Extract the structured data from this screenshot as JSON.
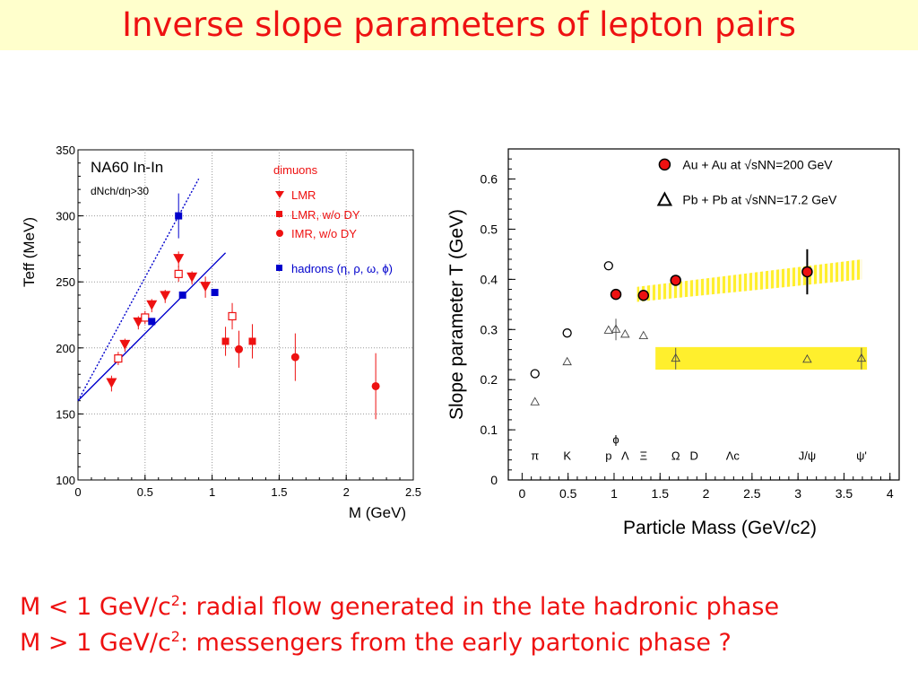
{
  "slide": {
    "title": "Inverse slope parameters of lepton pairs",
    "caption_1": {
      "prefix": "M < 1 GeV/c",
      "sup": "2",
      "suffix": ": radial flow generated in the late hadronic phase"
    },
    "caption_2": {
      "prefix": "M > 1 GeV/c",
      "sup": "2",
      "suffix": ": messengers from the early partonic phase ?"
    }
  },
  "colors": {
    "title_bg": "#ffffcc",
    "red": "#ee1111",
    "blue": "#0000cc",
    "yellow_band": "#ffee22"
  },
  "chart_data": [
    {
      "type": "scatter",
      "title": "NA60 In-In",
      "subtitle": "dNch/dη>30",
      "xlabel": "M (GeV)",
      "ylabel": "Teff (MeV)",
      "xlim": [
        0,
        2.5
      ],
      "ylim": [
        100,
        350
      ],
      "xticks": [
        0,
        0.5,
        1,
        1.5,
        2,
        2.5
      ],
      "xtick_labels": [
        "0",
        "0.5",
        "1",
        "1.5",
        "2",
        "2.5"
      ],
      "yticks": [
        100,
        150,
        200,
        250,
        300,
        350
      ],
      "ytick_labels": [
        "100",
        "150",
        "200",
        "250",
        "300",
        "350"
      ],
      "grid": true,
      "legend_title": "dimuons",
      "legend": [
        "LMR",
        "LMR, w/o DY",
        "IMR,  w/o DY",
        "hadrons (η, ρ, ω, ϕ)"
      ],
      "series": [
        {
          "name": "LMR",
          "marker": "triangle-down",
          "color": "#ee1111",
          "points": [
            [
              0.25,
              173,
              6
            ],
            [
              0.35,
              202,
              5
            ],
            [
              0.45,
              219,
              5
            ],
            [
              0.55,
              232,
              5
            ],
            [
              0.65,
              239,
              5
            ],
            [
              0.75,
              267,
              6
            ],
            [
              0.85,
              253,
              5
            ],
            [
              0.95,
              246,
              8
            ]
          ]
        },
        {
          "name": "LMR, w/o DY",
          "marker": "square",
          "color": "#ee1111",
          "points": [
            [
              1.1,
              205,
              11
            ],
            [
              1.3,
              205,
              13
            ]
          ]
        },
        {
          "name": "LMR, w/o DY (open)",
          "marker": "square-open",
          "color": "#ee1111",
          "points": [
            [
              0.3,
              192,
              5
            ],
            [
              0.5,
              223,
              5
            ],
            [
              0.75,
              256,
              6
            ],
            [
              1.15,
              224,
              10
            ]
          ]
        },
        {
          "name": "IMR,  w/o DY",
          "marker": "circle",
          "color": "#ee1111",
          "points": [
            [
              1.2,
              199,
              14
            ],
            [
              1.62,
              193,
              18
            ],
            [
              2.22,
              171,
              25
            ]
          ]
        },
        {
          "name": "hadrons (η, ρ, ω, ϕ)",
          "marker": "square",
          "color": "#0000cc",
          "points": [
            [
              0.55,
              220,
              0
            ],
            [
              0.78,
              240,
              0
            ],
            [
              1.02,
              242,
              0
            ],
            [
              0.75,
              300,
              17
            ]
          ]
        }
      ],
      "fit_lines": [
        {
          "style": "dotted",
          "color": "#0000cc",
          "x": [
            0,
            0.9
          ],
          "y": [
            160,
            328
          ]
        },
        {
          "style": "solid",
          "color": "#0000cc",
          "x": [
            0,
            1.1
          ],
          "y": [
            160,
            272
          ]
        }
      ]
    },
    {
      "type": "scatter",
      "xlabel": "Particle Mass (GeV/c2)",
      "ylabel": "Slope parameter T (GeV)",
      "xlim": [
        -0.15,
        4.1
      ],
      "ylim": [
        0,
        0.66
      ],
      "xticks": [
        0,
        0.5,
        1,
        1.5,
        2,
        2.5,
        3,
        3.5,
        4
      ],
      "xtick_labels": [
        "0",
        "0.5",
        "1",
        "1.5",
        "2",
        "2.5",
        "3",
        "3.5",
        "4"
      ],
      "yticks": [
        0,
        0.1,
        0.2,
        0.3,
        0.4,
        0.5,
        0.6
      ],
      "ytick_labels": [
        "0",
        "0.1",
        "0.2",
        "0.3",
        "0.4",
        "0.5",
        "0.6"
      ],
      "grid": false,
      "legend": [
        "Au + Au at √sNN=200 GeV",
        "Pb + Pb at √sNN=17.2 GeV"
      ],
      "particle_labels": [
        {
          "label": "π",
          "x": 0.14
        },
        {
          "label": "K",
          "x": 0.49
        },
        {
          "label": "p",
          "x": 0.94
        },
        {
          "label": "ϕ",
          "x": 1.02
        },
        {
          "label": "Λ",
          "x": 1.12
        },
        {
          "label": "Ξ",
          "x": 1.32
        },
        {
          "label": "Ω",
          "x": 1.67
        },
        {
          "label": "D",
          "x": 1.87
        },
        {
          "label": "Λc",
          "x": 2.29
        },
        {
          "label": "J/ψ",
          "x": 3.1
        },
        {
          "label": "ψ'",
          "x": 3.69
        }
      ],
      "series": [
        {
          "name": "Au + Au filled",
          "marker": "circle-filled",
          "color": "#ee1111",
          "points": [
            [
              1.02,
              0.37,
              0
            ],
            [
              1.32,
              0.368,
              0
            ],
            [
              1.67,
              0.398,
              0
            ],
            [
              3.1,
              0.415,
              0.045
            ]
          ]
        },
        {
          "name": "Au + Au open",
          "marker": "circle-open",
          "points": [
            [
              0.14,
              0.212
            ],
            [
              0.49,
              0.293
            ],
            [
              0.94,
              0.427
            ]
          ]
        },
        {
          "name": "Pb + Pb at √sNN=17.2 GeV",
          "marker": "triangle-open",
          "points": [
            [
              0.14,
              0.155
            ],
            [
              0.49,
              0.235
            ],
            [
              0.94,
              0.298
            ],
            [
              1.02,
              0.3
            ],
            [
              1.12,
              0.29
            ],
            [
              1.32,
              0.287
            ],
            [
              1.67,
              0.242
            ],
            [
              3.1,
              0.24
            ],
            [
              3.69,
              0.242
            ]
          ]
        }
      ],
      "bands": [
        {
          "color": "#ffee22",
          "style": "hatched",
          "x": [
            1.25,
            3.7
          ],
          "y_low": [
            0.355,
            0.4
          ],
          "y_high": [
            0.385,
            0.44
          ]
        },
        {
          "color": "#ffee22",
          "style": "solid",
          "x": [
            1.45,
            3.75
          ],
          "y_low": [
            0.22,
            0.22
          ],
          "y_high": [
            0.265,
            0.265
          ]
        }
      ]
    }
  ]
}
